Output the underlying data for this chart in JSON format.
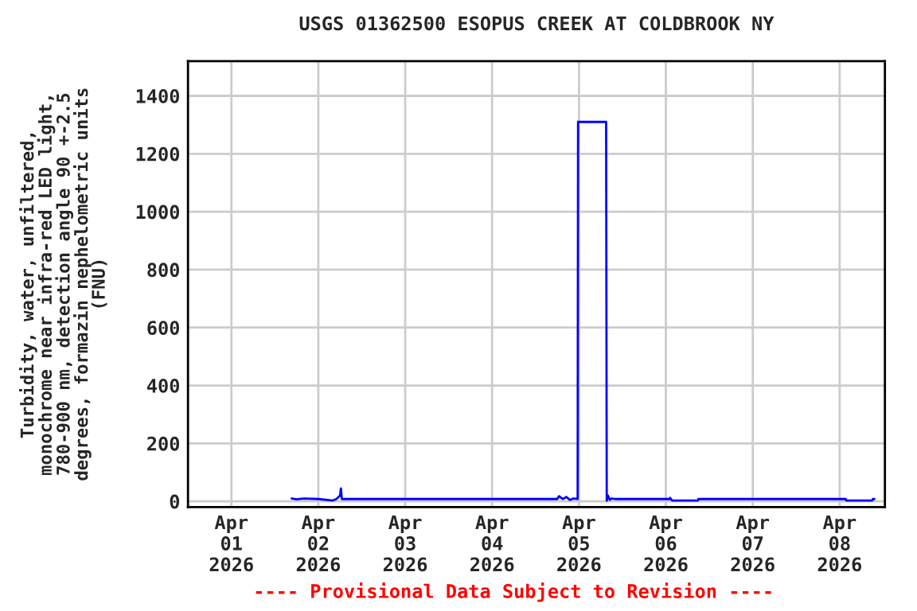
{
  "chart_data": {
    "type": "line",
    "title": "USGS 01362500 ESOPUS CREEK AT COLDBROOK NY",
    "ylabel": "Turbidity, water, unfiltered,\nmonochrome near infra-red LED light,\n780-900 nm, detection angle 90 +-2.5\ndegrees, formazin nephelometric units\n(FNU)",
    "annotations": [
      "---- Provisional Data Subject to Revision ----"
    ],
    "x": [
      "2026-04-01T16:40",
      "2026-04-01T18:00",
      "2026-04-01T20:00",
      "2026-04-02T00:00",
      "2026-04-02T04:00",
      "2026-04-02T05:00",
      "2026-04-02T06:00",
      "2026-04-02T06:15",
      "2026-04-02T06:30",
      "2026-04-04T18:00",
      "2026-04-04T18:30",
      "2026-04-04T19:30",
      "2026-04-04T20:30",
      "2026-04-04T21:30",
      "2026-04-04T22:30",
      "2026-04-04T23:38",
      "2026-04-04T23:45",
      "2026-04-05T07:30",
      "2026-04-05T07:35",
      "2026-04-05T07:40",
      "2026-04-05T08:00",
      "2026-04-05T08:30",
      "2026-04-05T09:00",
      "2026-04-05T10:00",
      "2026-04-06T01:00",
      "2026-04-06T01:10",
      "2026-04-06T01:45",
      "2026-04-06T08:50",
      "2026-04-06T09:00",
      "2026-04-08T01:40",
      "2026-04-08T01:50",
      "2026-04-08T09:00",
      "2026-04-08T09:10",
      "2026-04-08T09:35"
    ],
    "series": [
      {
        "color": "#0000ff",
        "values": [
          10,
          7,
          10,
          8,
          3,
          8,
          20,
          45,
          8,
          8,
          18,
          8,
          15,
          5,
          10,
          8,
          1310,
          1310,
          650,
          2,
          20,
          5,
          10,
          8,
          8,
          12,
          3,
          3,
          8,
          8,
          3,
          3,
          8,
          8
        ]
      }
    ],
    "xlim": [
      "2026-03-31T12:00",
      "2026-04-08T12:30"
    ],
    "xticks": [
      {
        "value": "2026-04-01",
        "label": "Apr\n01\n2026"
      },
      {
        "value": "2026-04-02",
        "label": "Apr\n02\n2026"
      },
      {
        "value": "2026-04-03",
        "label": "Apr\n03\n2026"
      },
      {
        "value": "2026-04-04",
        "label": "Apr\n04\n2026"
      },
      {
        "value": "2026-04-05",
        "label": "Apr\n05\n2026"
      },
      {
        "value": "2026-04-06",
        "label": "Apr\n06\n2026"
      },
      {
        "value": "2026-04-07",
        "label": "Apr\n07\n2026"
      },
      {
        "value": "2026-04-08",
        "label": "Apr\n08\n2026"
      }
    ],
    "ylim": [
      -20,
      1520
    ],
    "yticks": [
      0,
      200,
      400,
      600,
      800,
      1000,
      1200,
      1400
    ],
    "grid": true,
    "legend": false,
    "marker": "none",
    "line_style": "solid"
  }
}
